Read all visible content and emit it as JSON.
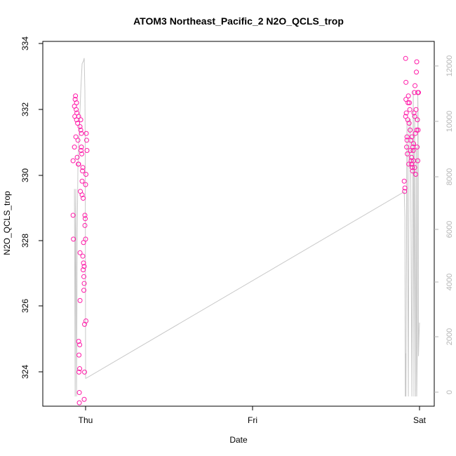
{
  "chart_data": {
    "type": "scatter",
    "title": "ATOM3 Northeast_Pacific_2 N2O_QCLS_trop",
    "xlabel": "Date",
    "ylabel": "N2O_QCLS_trop",
    "x_ticks": [
      "Thu",
      "Fri",
      "Sat"
    ],
    "y_left_ticks": [
      324,
      326,
      328,
      330,
      332,
      334
    ],
    "y_right_ticks": [
      0,
      2000,
      4000,
      6000,
      8000,
      10000,
      12000
    ],
    "ylim": [
      323.4,
      334.1
    ],
    "y2lim": [
      -300,
      12800
    ],
    "colors": {
      "points": "#ff1aa8",
      "line": "#c8c8c8",
      "right_axis": "#b5b5b5"
    },
    "series": [
      {
        "type": "scatter",
        "axis": "left",
        "points_hours": [
          [
            -1.8,
            330.6
          ],
          [
            -1.8,
            329.0
          ],
          [
            -1.75,
            328.3
          ],
          [
            -1.6,
            332.2
          ],
          [
            -1.55,
            331.9
          ],
          [
            -1.5,
            332.4
          ],
          [
            -1.45,
            332.5
          ],
          [
            -1.4,
            331.3
          ],
          [
            -1.35,
            332.1
          ],
          [
            -1.3,
            331.8
          ],
          [
            -1.25,
            332.0
          ],
          [
            -1.2,
            330.7
          ],
          [
            -1.15,
            331.7
          ],
          [
            -1.1,
            331.2
          ],
          [
            -1.05,
            330.5
          ],
          [
            -1.0,
            330.5
          ],
          [
            -1.0,
            325.3
          ],
          [
            -0.95,
            324.9
          ],
          [
            -0.95,
            324.4
          ],
          [
            -0.9,
            323.5
          ],
          [
            -0.9,
            323.8
          ],
          [
            -0.85,
            324.5
          ],
          [
            -0.85,
            325.2
          ],
          [
            -0.8,
            327.9
          ],
          [
            -0.8,
            326.5
          ],
          [
            -0.75,
            329.7
          ],
          [
            -0.7,
            331.8
          ],
          [
            -0.7,
            331.5
          ],
          [
            -0.65,
            330.9
          ],
          [
            -0.6,
            331.0
          ],
          [
            -0.6,
            331.4
          ],
          [
            -0.55,
            330.8
          ],
          [
            -0.5,
            329.6
          ],
          [
            -0.5,
            330.0
          ],
          [
            -0.45,
            330.3
          ],
          [
            -0.4,
            330.4
          ],
          [
            -0.35,
            329.5
          ],
          [
            -0.3,
            328.2
          ],
          [
            -0.3,
            327.6
          ],
          [
            -0.25,
            327.2
          ],
          [
            -0.25,
            326.8
          ],
          [
            -0.2,
            327.5
          ],
          [
            -0.2,
            327.0
          ],
          [
            -0.15,
            324.4
          ],
          [
            -0.15,
            325.8
          ],
          [
            -0.1,
            329.0
          ],
          [
            -0.1,
            328.7
          ],
          [
            -0.05,
            328.9
          ],
          [
            0.0,
            328.3
          ],
          [
            0.0,
            329.9
          ],
          [
            0.05,
            330.2
          ],
          [
            0.1,
            331.4
          ],
          [
            0.15,
            331.2
          ],
          [
            0.2,
            330.9
          ],
          [
            -1.3,
            332.3
          ],
          [
            -1.0,
            331.9
          ],
          [
            -0.8,
            331.6
          ],
          [
            -1.6,
            331.0
          ],
          [
            -0.4,
            327.8
          ],
          [
            -0.35,
            327.4
          ],
          [
            0.05,
            325.9
          ],
          [
            -0.2,
            323.6
          ]
        ]
      },
      {
        "type": "scatter",
        "axis": "left",
        "points_hours": [
          [
            45.8,
            330.0
          ],
          [
            45.85,
            329.7
          ],
          [
            45.9,
            329.8
          ],
          [
            46.0,
            331.9
          ],
          [
            46.05,
            332.4
          ],
          [
            46.1,
            332.0
          ],
          [
            46.15,
            331.0
          ],
          [
            46.2,
            331.3
          ],
          [
            46.25,
            330.8
          ],
          [
            46.3,
            331.8
          ],
          [
            46.35,
            332.3
          ],
          [
            46.4,
            332.5
          ],
          [
            46.45,
            330.5
          ],
          [
            46.5,
            331.7
          ],
          [
            46.6,
            332.1
          ],
          [
            46.65,
            331.5
          ],
          [
            46.7,
            330.9
          ],
          [
            46.75,
            331.2
          ],
          [
            46.8,
            330.6
          ],
          [
            46.85,
            330.7
          ],
          [
            46.9,
            331.3
          ],
          [
            46.95,
            330.4
          ],
          [
            47.0,
            330.3
          ],
          [
            47.05,
            331.0
          ],
          [
            47.1,
            330.9
          ],
          [
            47.15,
            331.1
          ],
          [
            47.2,
            332.0
          ],
          [
            47.25,
            332.6
          ],
          [
            47.3,
            331.9
          ],
          [
            47.35,
            332.8
          ],
          [
            47.4,
            331.4
          ],
          [
            47.45,
            330.2
          ],
          [
            47.5,
            332.1
          ],
          [
            47.55,
            333.2
          ],
          [
            47.6,
            331.5
          ],
          [
            47.65,
            331.0
          ],
          [
            47.7,
            331.8
          ],
          [
            47.75,
            332.6
          ],
          [
            47.8,
            331.5
          ],
          [
            46.05,
            332.9
          ],
          [
            46.0,
            333.6
          ],
          [
            47.6,
            333.5
          ],
          [
            47.75,
            330.6
          ],
          [
            47.85,
            332.6
          ],
          [
            46.2,
            331.2
          ],
          [
            46.55,
            332.3
          ],
          [
            46.85,
            330.5
          ],
          [
            47.3,
            330.4
          ],
          [
            47.15,
            330.6
          ]
        ]
      }
    ],
    "line_series": {
      "type": "line",
      "axis": "right",
      "points_hours": [
        [
          -1.6,
          7500
        ],
        [
          -1.5,
          50
        ],
        [
          -1.45,
          6000
        ],
        [
          -1.4,
          7500
        ],
        [
          -1.3,
          50
        ],
        [
          -1.2,
          6000
        ],
        [
          -1.1,
          8300
        ],
        [
          -1.0,
          9200
        ],
        [
          -0.9,
          9500
        ],
        [
          -0.85,
          10000
        ],
        [
          -0.7,
          11000
        ],
        [
          -0.5,
          12000
        ],
        [
          -0.3,
          12100
        ],
        [
          -0.2,
          12200
        ],
        [
          -0.1,
          11000
        ],
        [
          -0.05,
          9000
        ],
        [
          0.0,
          700
        ],
        [
          0.05,
          700
        ],
        [
          45.8,
          7400
        ],
        [
          45.9,
          6500
        ],
        [
          45.95,
          50
        ],
        [
          46.0,
          1600
        ],
        [
          46.05,
          50
        ],
        [
          46.2,
          10000
        ],
        [
          46.4,
          50
        ],
        [
          46.5,
          10000
        ],
        [
          46.7,
          10000
        ],
        [
          46.9,
          50
        ],
        [
          47.1,
          11000
        ],
        [
          47.2,
          50
        ],
        [
          47.3,
          10200
        ],
        [
          47.45,
          50
        ],
        [
          47.55,
          9000
        ],
        [
          47.6,
          50
        ],
        [
          47.7,
          2000
        ],
        [
          47.75,
          11000
        ],
        [
          47.8,
          10000
        ],
        [
          47.85,
          1500
        ],
        [
          47.9,
          2000
        ],
        [
          47.95,
          2400
        ],
        [
          48.0,
          2700
        ]
      ]
    }
  }
}
